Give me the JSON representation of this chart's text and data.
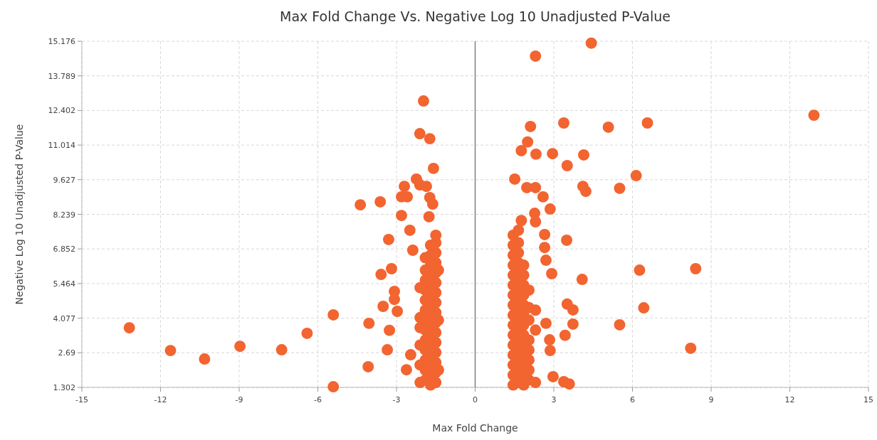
{
  "chart_data": {
    "type": "scatter",
    "title": "Max Fold Change Vs. Negative Log 10 Unadjusted P-Value",
    "xlabel": "Max Fold Change",
    "ylabel": "Negative Log 10 Unadjusted P-Value",
    "xlim": [
      -15,
      15
    ],
    "xticks": [
      -15,
      -12,
      -9,
      -6,
      -3,
      0,
      3,
      6,
      9,
      12,
      15
    ],
    "ylim": [
      1.302,
      15.176
    ],
    "yticks": [
      1.302,
      2.69,
      4.077,
      5.464,
      6.852,
      8.239,
      9.627,
      11.014,
      12.402,
      13.789,
      15.176
    ],
    "grid": true,
    "marker": "circle",
    "ref_lines": [
      {
        "axis": "x",
        "value": 0,
        "color": "#808080"
      }
    ],
    "series": [
      {
        "color": "#f26430",
        "x": [
          -13.19,
          -11.62,
          -10.32,
          -8.97,
          -7.38,
          -6.41,
          -5.41,
          -5.41,
          -4.38,
          -3.62,
          -4.08,
          -4.05,
          -3.59,
          -3.51,
          -3.27,
          -3.35,
          -3.3,
          -3.19,
          -3.08,
          -3.08,
          -2.97,
          -2.81,
          -2.7,
          -2.81,
          -2.59,
          -2.62,
          -2.49,
          -2.46,
          -2.38,
          -2.24,
          -2.11,
          -1.97,
          -2.11,
          -1.73,
          -1.59,
          -1.86,
          -1.73,
          -1.62,
          -1.76,
          -1.5,
          -1.5,
          -1.5,
          -1.5,
          -1.5,
          -1.5,
          -1.5,
          -1.5,
          -1.5,
          -1.5,
          -1.5,
          -1.5,
          -1.5,
          -1.5,
          -1.5,
          -1.5,
          -1.7,
          -1.7,
          -1.7,
          -1.7,
          -1.7,
          -1.7,
          -1.7,
          -1.7,
          -1.7,
          -1.7,
          -1.7,
          -1.7,
          -1.7,
          -1.7,
          -1.7,
          -1.9,
          -1.9,
          -1.9,
          -1.9,
          -1.9,
          -1.9,
          -1.9,
          -1.9,
          -1.9,
          -1.9,
          -1.9,
          -1.9,
          -1.9,
          -2.1,
          -2.1,
          -2.1,
          -2.1,
          -2.1,
          -2.1,
          -1.4,
          -1.4,
          -1.4,
          2.3,
          4.43,
          2.11,
          3.38,
          5.08,
          6.57,
          12.92,
          2.0,
          1.76,
          2.32,
          2.95,
          4.14,
          3.51,
          1.51,
          1.97,
          2.3,
          2.59,
          2.86,
          4.11,
          4.22,
          6.14,
          5.51,
          2.27,
          2.3,
          1.76,
          2.65,
          3.49,
          2.92,
          6.27,
          8.41,
          4.08,
          2.7,
          3.51,
          3.73,
          3.73,
          5.51,
          6.43,
          8.22,
          3.43,
          2.84,
          2.86,
          2.97,
          3.38,
          3.59,
          2.7,
          2.65,
          1.45,
          1.45,
          1.45,
          1.45,
          1.45,
          1.45,
          1.45,
          1.45,
          1.45,
          1.45,
          1.45,
          1.45,
          1.45,
          1.45,
          1.45,
          1.45,
          1.65,
          1.65,
          1.65,
          1.65,
          1.65,
          1.65,
          1.65,
          1.65,
          1.65,
          1.65,
          1.65,
          1.65,
          1.65,
          1.65,
          1.65,
          1.65,
          1.85,
          1.85,
          1.85,
          1.85,
          1.85,
          1.85,
          1.85,
          1.85,
          1.85,
          1.85,
          1.85,
          1.85,
          1.85,
          2.05,
          2.05,
          2.05,
          2.05,
          2.05,
          2.05,
          2.05,
          2.05,
          2.3,
          2.3,
          2.3
        ],
        "values": [
          3.69,
          2.78,
          2.44,
          2.95,
          2.81,
          3.47,
          4.21,
          1.33,
          8.62,
          8.74,
          2.13,
          3.87,
          5.83,
          4.55,
          3.59,
          2.81,
          7.23,
          6.06,
          5.15,
          4.83,
          4.35,
          8.19,
          9.36,
          8.94,
          8.94,
          2.01,
          7.6,
          2.61,
          6.8,
          9.65,
          9.42,
          12.78,
          11.47,
          11.27,
          10.08,
          9.36,
          8.91,
          8.65,
          8.14,
          1.5,
          1.9,
          2.3,
          2.7,
          3.1,
          3.5,
          3.9,
          4.3,
          4.7,
          5.1,
          5.5,
          5.9,
          6.3,
          6.7,
          7.1,
          7.4,
          1.4,
          1.8,
          2.2,
          2.6,
          3.0,
          3.4,
          3.8,
          4.2,
          4.6,
          5.0,
          5.4,
          5.8,
          6.2,
          6.6,
          7.0,
          1.6,
          2.0,
          2.4,
          2.8,
          3.2,
          3.6,
          4.0,
          4.4,
          4.8,
          5.2,
          5.6,
          6.0,
          6.5,
          1.5,
          2.2,
          3.0,
          3.7,
          4.1,
          5.3,
          2.0,
          4.0,
          6.0,
          14.58,
          15.1,
          11.76,
          11.9,
          11.73,
          11.9,
          12.21,
          11.14,
          10.79,
          10.65,
          10.67,
          10.62,
          10.19,
          9.65,
          9.31,
          9.31,
          8.94,
          8.45,
          9.36,
          9.16,
          9.79,
          9.28,
          8.28,
          7.94,
          7.99,
          7.43,
          7.2,
          5.86,
          6.0,
          6.06,
          5.63,
          6.4,
          4.64,
          4.41,
          3.84,
          3.81,
          4.49,
          2.87,
          3.39,
          3.21,
          2.78,
          1.73,
          1.53,
          1.44,
          3.87,
          6.91,
          1.4,
          1.8,
          2.2,
          2.6,
          3.0,
          3.4,
          3.8,
          4.2,
          4.6,
          5.0,
          5.4,
          5.8,
          6.2,
          6.6,
          7.0,
          7.4,
          1.5,
          1.9,
          2.3,
          2.7,
          3.1,
          3.5,
          3.9,
          4.3,
          4.7,
          5.1,
          5.5,
          5.9,
          6.3,
          6.7,
          7.1,
          7.6,
          1.4,
          1.8,
          2.2,
          2.6,
          3.0,
          3.4,
          3.8,
          4.2,
          4.6,
          5.0,
          5.4,
          5.8,
          6.2,
          1.6,
          2.0,
          2.4,
          2.8,
          3.2,
          4.0,
          4.5,
          5.2,
          1.5,
          3.6,
          4.4
        ]
      }
    ]
  }
}
